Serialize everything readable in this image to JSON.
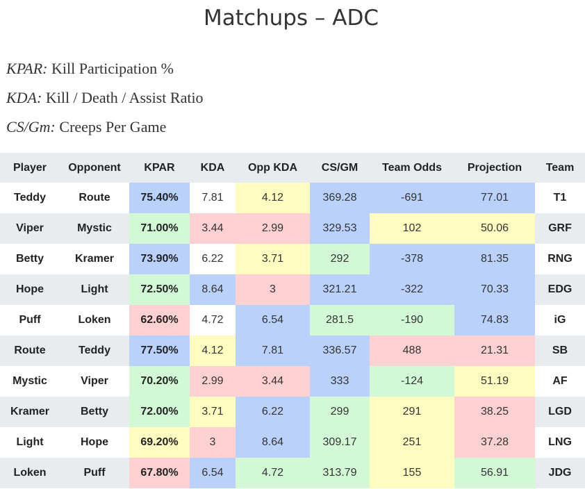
{
  "title": "Matchups – ADC",
  "legend": [
    {
      "term": "KPAR:",
      "def": " Kill Participation %"
    },
    {
      "term": "KDA:",
      "def": " Kill / Death / Assist Ratio"
    },
    {
      "term": "CS/Gm:",
      "def": " Creeps Per Game"
    }
  ],
  "table": {
    "headers": [
      "Player",
      "Opponent",
      "KPAR",
      "KDA",
      "Opp KDA",
      "CS/GM",
      "Team Odds",
      "Projection",
      "Team"
    ],
    "rows": [
      {
        "cells": [
          "Teddy",
          "Route",
          "75.40%",
          "7.81",
          "4.12",
          "369.28",
          "-691",
          "77.01",
          "T1"
        ],
        "colors": [
          "",
          "",
          "blue",
          "",
          "yellow",
          "blue",
          "blue",
          "blue",
          ""
        ]
      },
      {
        "cells": [
          "Viper",
          "Mystic",
          "71.00%",
          "3.44",
          "2.99",
          "329.53",
          "102",
          "50.06",
          "GRF"
        ],
        "colors": [
          "",
          "",
          "green",
          "red",
          "red",
          "blue",
          "yellow",
          "yellow",
          ""
        ]
      },
      {
        "cells": [
          "Betty",
          "Kramer",
          "73.90%",
          "6.22",
          "3.71",
          "292",
          "-378",
          "81.35",
          "RNG"
        ],
        "colors": [
          "",
          "",
          "blue",
          "",
          "yellow",
          "green",
          "blue",
          "blue",
          ""
        ]
      },
      {
        "cells": [
          "Hope",
          "Light",
          "72.50%",
          "8.64",
          "3",
          "321.21",
          "-322",
          "70.33",
          "EDG"
        ],
        "colors": [
          "",
          "",
          "green",
          "blue",
          "red",
          "blue",
          "blue",
          "blue",
          ""
        ]
      },
      {
        "cells": [
          "Puff",
          "Loken",
          "62.60%",
          "4.72",
          "6.54",
          "281.5",
          "-190",
          "74.83",
          "iG"
        ],
        "colors": [
          "",
          "",
          "red",
          "",
          "blue",
          "green",
          "green",
          "blue",
          ""
        ]
      },
      {
        "cells": [
          "Route",
          "Teddy",
          "77.50%",
          "4.12",
          "7.81",
          "336.57",
          "488",
          "21.31",
          "SB"
        ],
        "colors": [
          "",
          "",
          "blue",
          "yellow",
          "blue",
          "blue",
          "red",
          "red",
          ""
        ]
      },
      {
        "cells": [
          "Mystic",
          "Viper",
          "70.20%",
          "2.99",
          "3.44",
          "333",
          "-124",
          "51.19",
          "AF"
        ],
        "colors": [
          "",
          "",
          "green",
          "red",
          "red",
          "blue",
          "green",
          "yellow",
          ""
        ]
      },
      {
        "cells": [
          "Kramer",
          "Betty",
          "72.00%",
          "3.71",
          "6.22",
          "299",
          "291",
          "38.25",
          "LGD"
        ],
        "colors": [
          "",
          "",
          "green",
          "yellow",
          "blue",
          "green",
          "yellow",
          "red",
          ""
        ]
      },
      {
        "cells": [
          "Light",
          "Hope",
          "69.20%",
          "3",
          "8.64",
          "309.17",
          "251",
          "37.28",
          "LNG"
        ],
        "colors": [
          "",
          "",
          "yellow",
          "red",
          "blue",
          "green",
          "yellow",
          "red",
          ""
        ]
      },
      {
        "cells": [
          "Loken",
          "Puff",
          "67.80%",
          "6.54",
          "4.72",
          "313.79",
          "155",
          "56.91",
          "JDG"
        ],
        "colors": [
          "",
          "",
          "red",
          "blue",
          "green",
          "green",
          "yellow",
          "green",
          ""
        ]
      }
    ]
  }
}
